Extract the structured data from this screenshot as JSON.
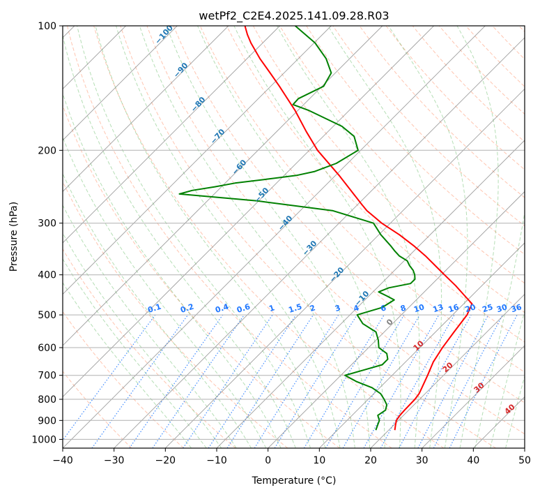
{
  "chart_data": {
    "type": "line",
    "title": "wetPf2_C2E4.2025.141.09.28.R03",
    "xlabel": "Temperature (°C)",
    "ylabel": "Pressure (hPa)",
    "xlim": [
      -40,
      50
    ],
    "ylim": [
      1050,
      100
    ],
    "y_scale": "log",
    "grid": true,
    "x_ticks": [
      -40,
      -30,
      -20,
      -10,
      0,
      10,
      20,
      30,
      40,
      50
    ],
    "y_ticks": [
      100,
      200,
      300,
      400,
      500,
      600,
      700,
      800,
      900,
      1000
    ],
    "x_tick_labels": [
      "−40",
      "−30",
      "−20",
      "−10",
      "0",
      "10",
      "20",
      "30",
      "40",
      "50"
    ],
    "y_tick_labels": [
      "100",
      "200",
      "300",
      "400",
      "500",
      "600",
      "700",
      "800",
      "900",
      "1000"
    ],
    "skew": 35,
    "colors": {
      "temperature": "#ff0000",
      "dewpoint": "#008000",
      "dry_adiabat": "#ff7f50",
      "moist_adiabat": "#2ca02c",
      "mixing_ratio": "#1f77ff",
      "isotherm": "#808080",
      "moist_label": "#1f77b4",
      "dry_label": "#d62728"
    },
    "series": [
      {
        "key": "temperature",
        "p": [
          950,
          925,
          900,
          875,
          850,
          800,
          775,
          750,
          700,
          650,
          600,
          550,
          500,
          470,
          450,
          425,
          400,
          380,
          360,
          340,
          320,
          300,
          290,
          280,
          270,
          250,
          230,
          200,
          180,
          160,
          140,
          130,
          120,
          110,
          105,
          100
        ],
        "t": [
          21.2,
          20.4,
          19.6,
          19.3,
          19.2,
          19.1,
          18.8,
          18.2,
          16.9,
          15.4,
          14.4,
          13.6,
          12.8,
          11.6,
          8.7,
          4.9,
          0.6,
          -3.0,
          -6.8,
          -11.1,
          -16.0,
          -21.7,
          -24.3,
          -27.0,
          -29.3,
          -34.1,
          -39.3,
          -48.4,
          -54.3,
          -60.6,
          -68.3,
          -72.7,
          -77.5,
          -82.3,
          -84.6,
          -86.8
        ]
      },
      {
        "key": "dewpoint",
        "p": [
          950,
          925,
          900,
          875,
          850,
          825,
          800,
          775,
          750,
          725,
          700,
          680,
          660,
          640,
          620,
          600,
          575,
          550,
          525,
          500,
          480,
          460,
          450,
          440,
          430,
          420,
          410,
          400,
          390,
          380,
          370,
          360,
          350,
          340,
          320,
          300,
          280,
          265,
          255,
          250,
          245,
          240,
          235,
          230,
          225,
          215,
          200,
          185,
          175,
          160,
          155,
          150,
          140,
          130,
          120,
          110,
          100
        ],
        "t": [
          17.5,
          16.9,
          16.3,
          15.0,
          15.5,
          14.7,
          13.1,
          11.3,
          8.5,
          4.3,
          0.8,
          3.4,
          6.0,
          6.0,
          4.7,
          2.0,
          0.4,
          -1.6,
          -5.8,
          -8.6,
          -5.2,
          -4.3,
          -6.5,
          -8.9,
          -7.7,
          -4.3,
          -4.3,
          -5.2,
          -6.4,
          -8.0,
          -9.4,
          -11.9,
          -13.8,
          -15.6,
          -19.6,
          -23.3,
          -33.6,
          -50.3,
          -66.8,
          -65.0,
          -61.3,
          -58.1,
          -52.7,
          -47.6,
          -44.8,
          -42.2,
          -40.5,
          -44.0,
          -48.3,
          -58.0,
          -62.1,
          -62.2,
          -59.7,
          -60.8,
          -64.6,
          -69.8,
          -77.0
        ]
      }
    ],
    "mixing_ratio_labels": [
      "0.1",
      "0.2",
      "0.4",
      "0.6",
      "1",
      "1.5",
      "2",
      "3",
      "4",
      "6",
      "8",
      "10",
      "13",
      "16",
      "20",
      "25",
      "30",
      "36"
    ],
    "moist_adiabat_labels": [
      "−100",
      "−90",
      "−80",
      "−70",
      "−60",
      "−50",
      "−40",
      "−30",
      "−20",
      "−10",
      "0"
    ],
    "dry_adiabat_labels": [
      "10",
      "20",
      "30",
      "40"
    ]
  }
}
